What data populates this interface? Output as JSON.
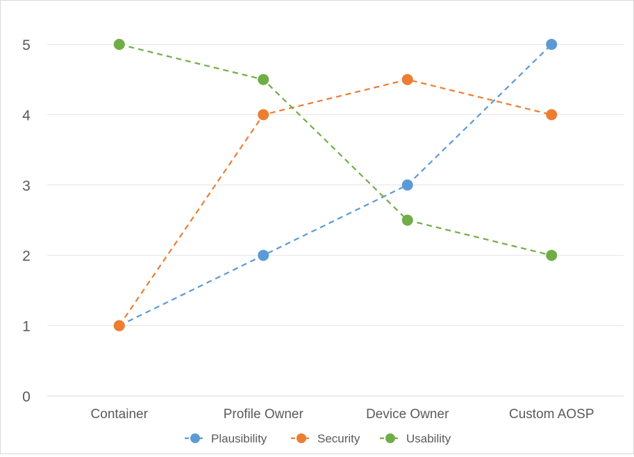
{
  "chart_data": {
    "type": "line",
    "categories": [
      "Container",
      "Profile Owner",
      "Device Owner",
      "Custom AOSP"
    ],
    "series": [
      {
        "name": "Plausibility",
        "values": [
          1,
          2,
          3,
          5
        ],
        "color": "#5b9bd5",
        "line_style": "dashed"
      },
      {
        "name": "Security",
        "values": [
          1,
          4,
          4.5,
          4
        ],
        "color": "#ed7d31",
        "line_style": "dashed"
      },
      {
        "name": "Usability",
        "values": [
          5,
          4.5,
          2.5,
          2
        ],
        "color": "#70ad47",
        "line_style": "dashed"
      }
    ],
    "yticks": [
      "0",
      "1",
      "2",
      "3",
      "4",
      "5"
    ],
    "ylim": [
      0,
      5
    ],
    "grid": "horizontal",
    "legend_position": "bottom",
    "title": "",
    "xlabel": "",
    "ylabel": ""
  }
}
